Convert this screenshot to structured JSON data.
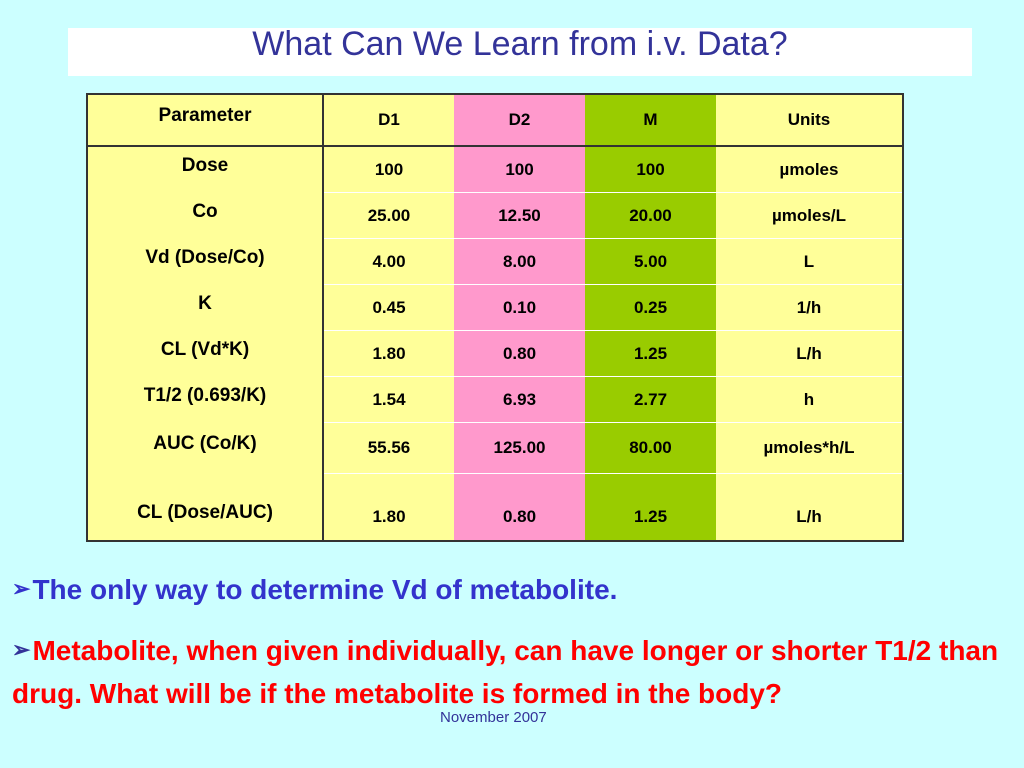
{
  "title": "What Can We Learn from i.v. Data?",
  "table": {
    "headers": [
      "Parameter",
      "D1",
      "D2",
      "M",
      "Units"
    ],
    "rows": [
      [
        "Dose",
        "100",
        "100",
        "100",
        "µmoles"
      ],
      [
        "Co",
        "25.00",
        "12.50",
        "20.00",
        "µmoles/L"
      ],
      [
        "Vd (Dose/Co)",
        "4.00",
        "8.00",
        "5.00",
        "L"
      ],
      [
        "K",
        "0.45",
        "0.10",
        "0.25",
        "1/h"
      ],
      [
        "CL (Vd*K)",
        "1.80",
        "0.80",
        "1.25",
        "L/h"
      ],
      [
        "T1/2 (0.693/K)",
        "1.54",
        "6.93",
        "2.77",
        "h"
      ],
      [
        "AUC (Co/K)",
        "55.56",
        "125.00",
        "80.00",
        "µmoles*h/L"
      ],
      [
        "CL (Dose/AUC)",
        "1.80",
        "0.80",
        "1.25",
        "L/h"
      ]
    ],
    "colors": {
      "parameter": "#ffff99",
      "d1": "#ffff99",
      "d2": "#ff99cc",
      "m": "#99cc00",
      "units": "#ffff99"
    }
  },
  "bullets": [
    {
      "text": "The only way to determine  Vd of metabolite.",
      "color": "#3333cc",
      "icon": "arrow-bullet-icon"
    },
    {
      "text": "Metabolite, when given individually, can have longer or shorter T1/2 than drug. What will be if the metabolite is formed in the body?",
      "color": "#ff0000",
      "icon": "arrow-bullet-icon"
    }
  ],
  "footer": "November 2007",
  "background_color": "#ccffff"
}
